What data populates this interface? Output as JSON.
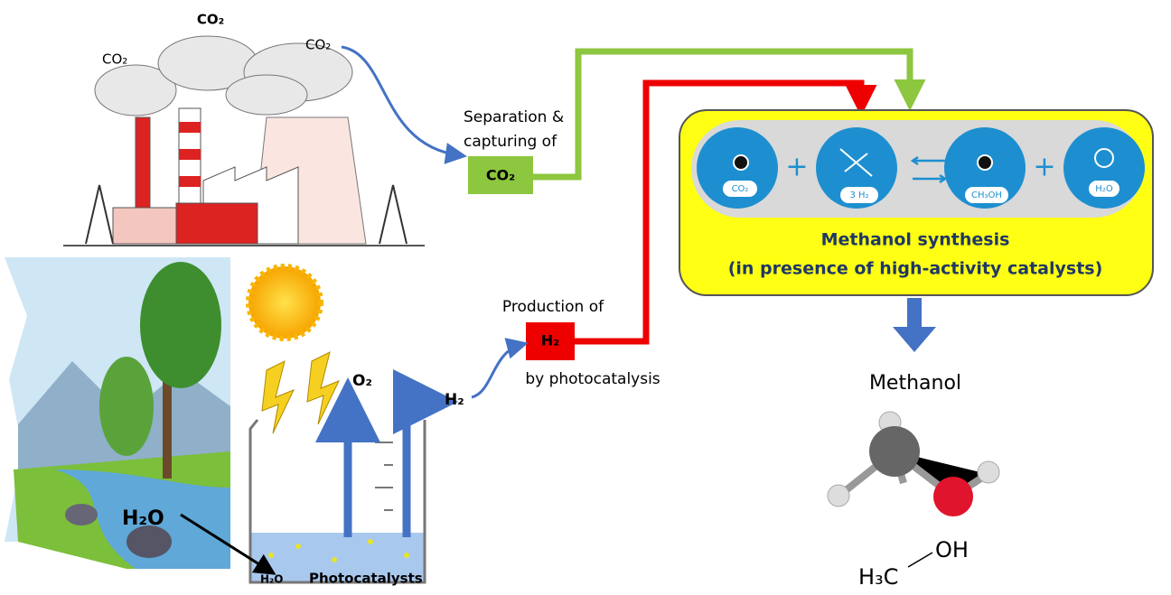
{
  "factory": {
    "labels": [
      "CO₂",
      "CO₂",
      "CO₂"
    ]
  },
  "capture": {
    "lines": [
      "Separation &",
      "capturing of"
    ],
    "box": "CO₂"
  },
  "production": {
    "above": "Production of",
    "box": "H₂",
    "below": "by photocatalysis"
  },
  "photocatalysis": {
    "o2": "O₂",
    "h2": "H₂",
    "water_source": "H₂O",
    "water": "H₂O",
    "catalyst": "Photocatalysts"
  },
  "synthesis": {
    "reactants": [
      "CO₂",
      "3 H₂"
    ],
    "products": [
      "CH₃OH",
      "H₂O"
    ],
    "operators": [
      "+",
      "+"
    ],
    "title": "Methanol synthesis",
    "subtitle": "(in presence of high-activity catalysts)"
  },
  "product": {
    "name": "Methanol",
    "formula_left": "H₃C",
    "formula_right": "OH"
  }
}
